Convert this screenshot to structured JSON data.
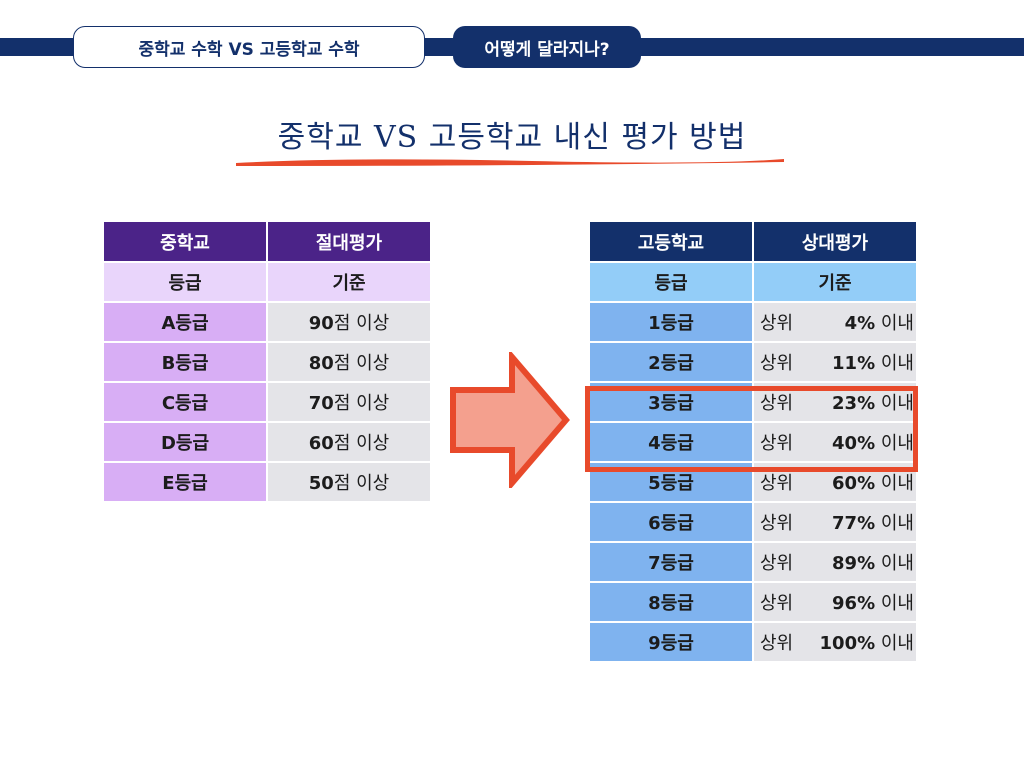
{
  "header": {
    "left_tab": "중학교 수학 VS 고등학교 수학",
    "right_tab": "어떻게 달라지나?"
  },
  "title": "중학교 VS 고등학교 내신 평가 방법",
  "colors": {
    "navy": "#13306b",
    "purple": "#4b2388",
    "light_purple": "#d8aef5",
    "light_blue": "#7fb3ef",
    "accent_red": "#e84a2b"
  },
  "middle_school": {
    "header": [
      "중학교",
      "절대평가"
    ],
    "subheader": [
      "등급",
      "기준"
    ],
    "rows": [
      {
        "grade": "A등급",
        "score": "90",
        "suffix": "점 이상"
      },
      {
        "grade": "B등급",
        "score": "80",
        "suffix": "점 이상"
      },
      {
        "grade": "C등급",
        "score": "70",
        "suffix": "점 이상"
      },
      {
        "grade": "D등급",
        "score": "60",
        "suffix": "점 이상"
      },
      {
        "grade": "E등급",
        "score": "50",
        "suffix": "점 이상"
      }
    ]
  },
  "high_school": {
    "header": [
      "고등학교",
      "상대평가"
    ],
    "subheader": [
      "등급",
      "기준"
    ],
    "prefix": "상위",
    "suffix": " 이내",
    "rows": [
      {
        "grade": "1등급",
        "pct": "4%"
      },
      {
        "grade": "2등급",
        "pct": "11%"
      },
      {
        "grade": "3등급",
        "pct": "23%"
      },
      {
        "grade": "4등급",
        "pct": "40%"
      },
      {
        "grade": "5등급",
        "pct": "60%"
      },
      {
        "grade": "6등급",
        "pct": "77%"
      },
      {
        "grade": "7등급",
        "pct": "89%"
      },
      {
        "grade": "8등급",
        "pct": "96%"
      },
      {
        "grade": "9등급",
        "pct": "100%"
      }
    ]
  },
  "icons": {
    "arrow": "right-arrow-icon",
    "highlight": "highlight-box"
  }
}
